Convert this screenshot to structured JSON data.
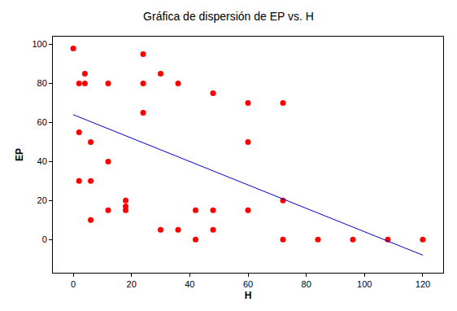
{
  "chart_data": {
    "type": "scatter",
    "title": "Gráfica de dispersión de EP vs. H",
    "x_label": "H",
    "y_label": "EP",
    "xlim": [
      -7,
      127
    ],
    "xticks": [
      0,
      20,
      40,
      60,
      80,
      100,
      120
    ],
    "ylim": [
      -17,
      104
    ],
    "yticks": [
      0,
      20,
      40,
      60,
      80,
      100
    ],
    "grid": false,
    "series": [
      {
        "type": "scatter",
        "color": "#ff0000",
        "marker": "circle",
        "x": [
          0,
          2,
          4,
          4,
          2,
          2,
          6,
          6,
          6,
          12,
          12,
          12,
          18,
          18,
          18,
          24,
          24,
          24,
          30,
          30,
          36,
          36,
          42,
          42,
          48,
          48,
          48,
          60,
          60,
          60,
          72,
          72,
          72,
          84,
          96,
          108,
          120
        ],
        "values": [
          98,
          80,
          80,
          85,
          55,
          30,
          50,
          30,
          10,
          80,
          40,
          15,
          20,
          17,
          15,
          95,
          80,
          65,
          85,
          5,
          80,
          5,
          15,
          0,
          75,
          15,
          5,
          70,
          50,
          15,
          70,
          20,
          0,
          0,
          0,
          0,
          0
        ]
      },
      {
        "type": "line",
        "color": "#0000cc",
        "line_style": "solid",
        "x": [
          0,
          120
        ],
        "values": [
          64,
          -8
        ]
      }
    ]
  }
}
